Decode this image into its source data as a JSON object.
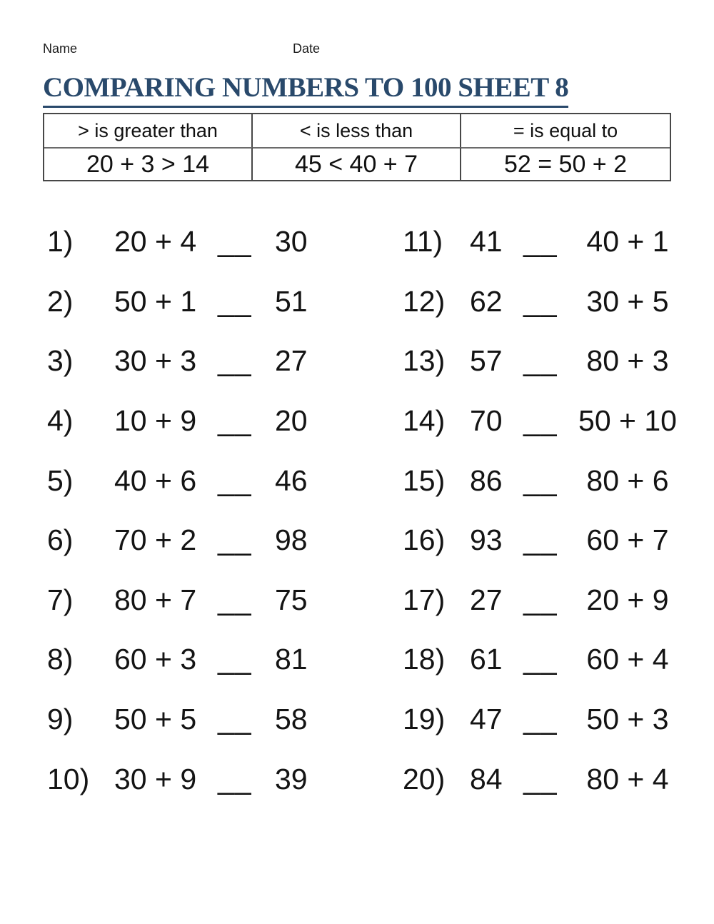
{
  "colors": {
    "title": "#29496b",
    "text": "#141414",
    "table_border": "#474747"
  },
  "header": {
    "name_label": "Name",
    "date_label": "Date"
  },
  "title": {
    "text": "COMPARING NUMBERS TO 100 SHEET 8"
  },
  "legend": {
    "columns": [
      {
        "header": "> is greater than",
        "example": "20 + 3 > 14"
      },
      {
        "header": "< is less than",
        "example": "45 < 40 + 7"
      },
      {
        "header": "= is equal to",
        "example": "52 = 50 + 2"
      }
    ]
  },
  "problems": {
    "blank": "__",
    "left": [
      {
        "num": "1)",
        "a": "20 + 4",
        "b": "30"
      },
      {
        "num": "2)",
        "a": "50 + 1",
        "b": "51"
      },
      {
        "num": "3)",
        "a": "30 + 3",
        "b": "27"
      },
      {
        "num": "4)",
        "a": "10 + 9",
        "b": "20"
      },
      {
        "num": "5)",
        "a": "40 + 6",
        "b": "46"
      },
      {
        "num": "6)",
        "a": "70 + 2",
        "b": "98"
      },
      {
        "num": "7)",
        "a": "80 + 7",
        "b": "75"
      },
      {
        "num": "8)",
        "a": "60 + 3",
        "b": "81"
      },
      {
        "num": "9)",
        "a": "50 + 5",
        "b": "58"
      },
      {
        "num": "10)",
        "a": "30 + 9",
        "b": "39"
      }
    ],
    "right": [
      {
        "num": "11)",
        "a": "41",
        "b": "40 + 1"
      },
      {
        "num": "12)",
        "a": "62",
        "b": "30 + 5"
      },
      {
        "num": "13)",
        "a": "57",
        "b": "80 + 3"
      },
      {
        "num": "14)",
        "a": "70",
        "b": "50 + 10"
      },
      {
        "num": "15)",
        "a": "86",
        "b": "80 + 6"
      },
      {
        "num": "16)",
        "a": "93",
        "b": "60 + 7"
      },
      {
        "num": "17)",
        "a": "27",
        "b": "20 + 9"
      },
      {
        "num": "18)",
        "a": "61",
        "b": "60 + 4"
      },
      {
        "num": "19)",
        "a": "47",
        "b": "50 + 3"
      },
      {
        "num": "20)",
        "a": "84",
        "b": "80 + 4"
      }
    ]
  }
}
